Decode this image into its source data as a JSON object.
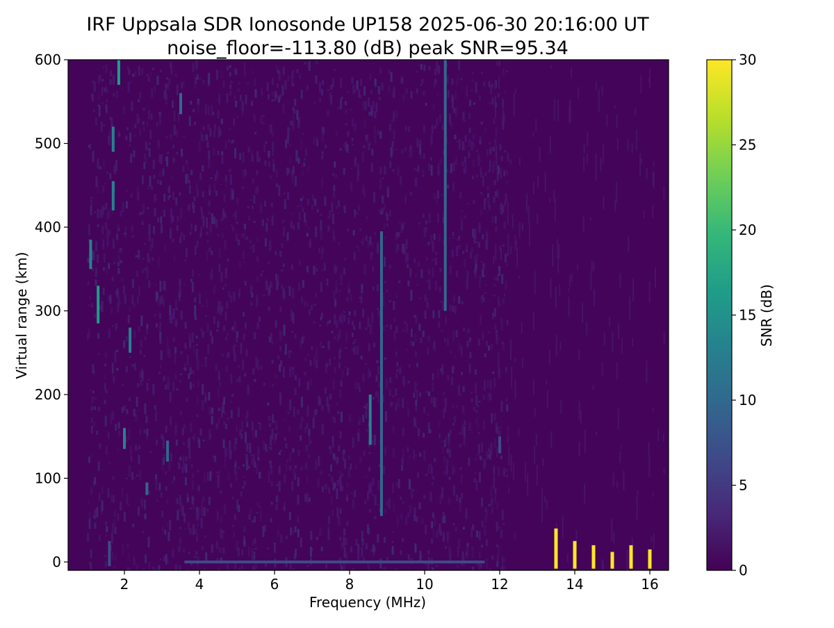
{
  "chart_data": {
    "type": "heatmap",
    "title_line1": "IRF Uppsala SDR Ionosonde UP158 2025-06-30 20:16:00  UT",
    "title_line2": "noise_floor=-113.80 (dB) peak SNR=95.34",
    "xlabel": "Frequency (MHz)",
    "ylabel": "Virtual range (km)",
    "xlim": [
      0.5,
      16.5
    ],
    "ylim": [
      -10,
      600
    ],
    "xticks": [
      2,
      4,
      6,
      8,
      10,
      12,
      14,
      16
    ],
    "yticks": [
      0,
      100,
      200,
      300,
      400,
      500,
      600
    ],
    "colorbar": {
      "label": "SNR (dB)",
      "range": [
        0,
        30
      ],
      "ticks": [
        0,
        5,
        10,
        15,
        20,
        25,
        30
      ],
      "colormap": [
        "#440154",
        "#482878",
        "#3e4a89",
        "#31688e",
        "#26828e",
        "#1f9e89",
        "#35b779",
        "#6ece58",
        "#b5de2b",
        "#fde725"
      ]
    },
    "background_snr": 0.5,
    "features": [
      {
        "kind": "vertical_trace",
        "freq": 10.55,
        "y_from": 300,
        "y_to": 600,
        "snr": 10
      },
      {
        "kind": "vertical_trace",
        "freq": 8.85,
        "y_from": 55,
        "y_to": 395,
        "snr": 11
      },
      {
        "kind": "vertical_trace",
        "freq": 8.55,
        "y_from": 140,
        "y_to": 200,
        "snr": 12
      },
      {
        "kind": "vertical_trace",
        "freq": 1.3,
        "y_from": 285,
        "y_to": 330,
        "snr": 15
      },
      {
        "kind": "vertical_trace",
        "freq": 1.1,
        "y_from": 350,
        "y_to": 385,
        "snr": 13
      },
      {
        "kind": "vertical_trace",
        "freq": 1.7,
        "y_from": 420,
        "y_to": 455,
        "snr": 14
      },
      {
        "kind": "vertical_trace",
        "freq": 1.7,
        "y_from": 490,
        "y_to": 520,
        "snr": 14
      },
      {
        "kind": "vertical_trace",
        "freq": 1.85,
        "y_from": 570,
        "y_to": 600,
        "snr": 15
      },
      {
        "kind": "vertical_trace",
        "freq": 2.15,
        "y_from": 250,
        "y_to": 280,
        "snr": 14
      },
      {
        "kind": "vertical_trace",
        "freq": 2.0,
        "y_from": 135,
        "y_to": 160,
        "snr": 14
      },
      {
        "kind": "vertical_trace",
        "freq": 3.15,
        "y_from": 120,
        "y_to": 145,
        "snr": 10
      },
      {
        "kind": "vertical_trace",
        "freq": 2.6,
        "y_from": 80,
        "y_to": 95,
        "snr": 9
      },
      {
        "kind": "vertical_trace",
        "freq": 3.5,
        "y_from": 535,
        "y_to": 560,
        "snr": 9
      },
      {
        "kind": "vertical_trace",
        "freq": 1.6,
        "y_from": -5,
        "y_to": 25,
        "snr": 7
      },
      {
        "kind": "vertical_trace",
        "freq": 12.0,
        "y_from": 130,
        "y_to": 150,
        "snr": 7
      },
      {
        "kind": "horizontal_band",
        "y": 0,
        "x_from": 3.6,
        "x_to": 11.6,
        "snr": 6
      },
      {
        "kind": "bright_bar",
        "freq": 13.5,
        "y_from": -8,
        "y_to": 40,
        "snr": 30
      },
      {
        "kind": "bright_bar",
        "freq": 14.0,
        "y_from": -8,
        "y_to": 25,
        "snr": 30
      },
      {
        "kind": "bright_bar",
        "freq": 14.5,
        "y_from": -8,
        "y_to": 20,
        "snr": 30
      },
      {
        "kind": "bright_bar",
        "freq": 15.0,
        "y_from": -8,
        "y_to": 12,
        "snr": 30
      },
      {
        "kind": "bright_bar",
        "freq": 15.5,
        "y_from": -8,
        "y_to": 20,
        "snr": 30
      },
      {
        "kind": "bright_bar",
        "freq": 16.0,
        "y_from": -8,
        "y_to": 15,
        "snr": 30
      }
    ]
  }
}
